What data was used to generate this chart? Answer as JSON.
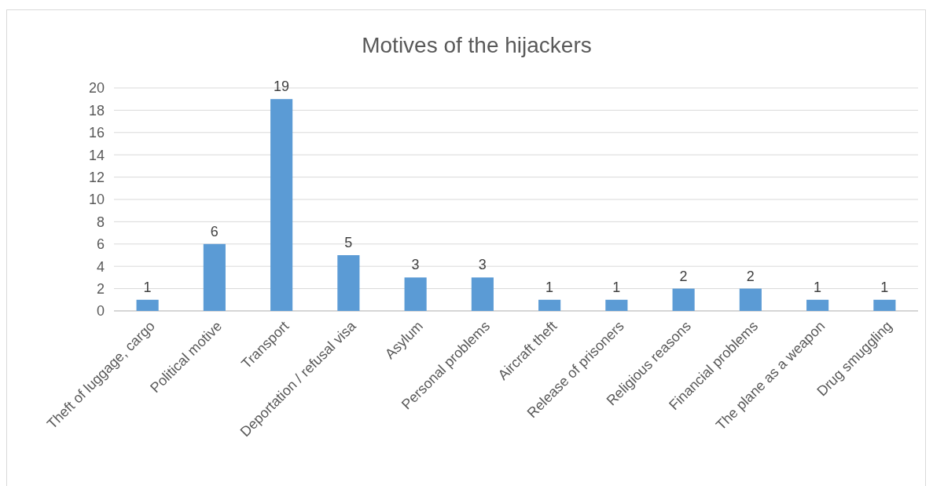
{
  "chart_data": {
    "type": "bar",
    "title": "Motives of the hijackers",
    "categories": [
      "Theft of luggage, cargo",
      "Political motive",
      "Transport",
      "Deportation / refusal visa",
      "Asylum",
      "Personal problems",
      "Aircraft theft",
      "Release of prisoners",
      "Religious reasons",
      "Financial problems",
      "The plane as a weapon",
      "Drug smuggling"
    ],
    "values": [
      1,
      6,
      19,
      5,
      3,
      3,
      1,
      1,
      2,
      2,
      1,
      1
    ],
    "color": "#5b9bd5",
    "ylim": [
      0,
      20
    ],
    "yticks": [
      0,
      2,
      4,
      6,
      8,
      10,
      12,
      14,
      16,
      18,
      20
    ],
    "grid": "y",
    "data_labels": true
  }
}
